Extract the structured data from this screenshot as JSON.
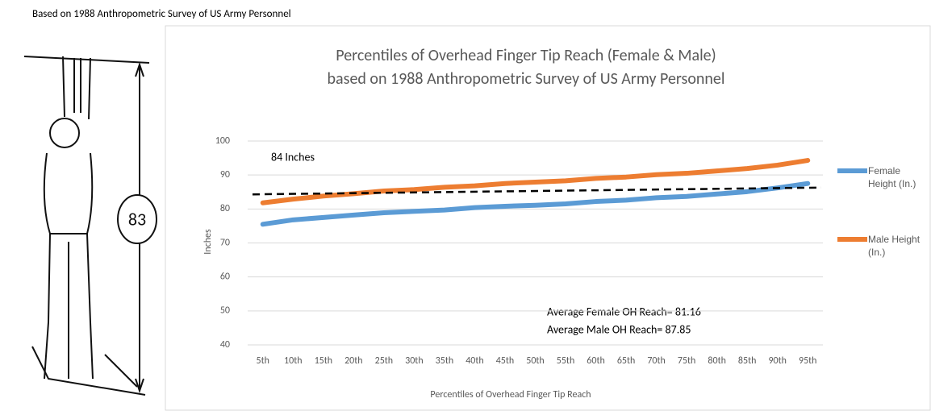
{
  "caption": "Based on 1988 Anthropometric Survey of US Army Personnel",
  "figure_label": "83",
  "chart_data": {
    "type": "line",
    "title": [
      "Percentiles of Overhead Finger Tip Reach (Female & Male)",
      "based on 1988 Anthropometric Survey of US Army Personnel"
    ],
    "xlabel": "Percentiles of Overhead Finger Tip Reach",
    "ylabel": "Inches",
    "categories": [
      "5th",
      "10th",
      "15th",
      "20th",
      "25th",
      "30th",
      "35th",
      "40th",
      "45th",
      "50th",
      "55th",
      "60th",
      "65th",
      "70th",
      "75th",
      "80th",
      "85th",
      "90th",
      "95th"
    ],
    "series": [
      {
        "name": "Female Height (In.)",
        "color": "#5b9bd5",
        "values": [
          75.5,
          76.8,
          77.5,
          78.2,
          78.9,
          79.3,
          79.7,
          80.4,
          80.8,
          81.1,
          81.5,
          82.2,
          82.6,
          83.3,
          83.7,
          84.4,
          85.1,
          86.2,
          87.5
        ]
      },
      {
        "name": "Male Height (In.)",
        "color": "#ed7d31",
        "values": [
          81.8,
          82.9,
          83.8,
          84.5,
          85.3,
          85.7,
          86.4,
          86.8,
          87.5,
          87.9,
          88.3,
          89.0,
          89.4,
          90.1,
          90.5,
          91.2,
          91.9,
          92.9,
          94.3
        ]
      }
    ],
    "reference_line": {
      "label": "84 Inches",
      "values": [
        84.3,
        86.3
      ],
      "color": "#000000"
    },
    "annotations": [
      "Average Female OH Reach= 81.16",
      "Average Male OH Reach= 87.85"
    ],
    "ylim": [
      40,
      100
    ],
    "yticks": [
      40,
      50,
      60,
      70,
      80,
      90,
      100
    ],
    "grid": true,
    "legend": "right"
  }
}
